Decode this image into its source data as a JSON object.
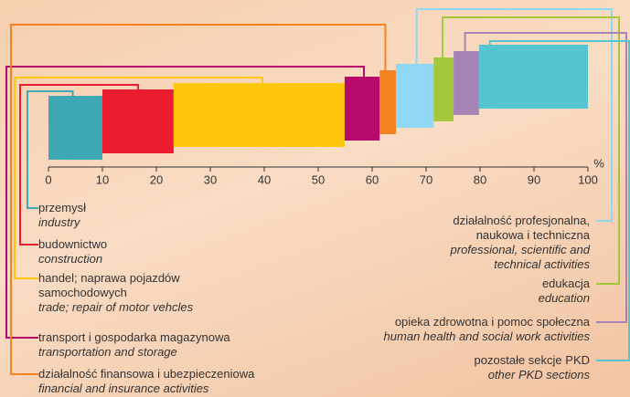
{
  "chart_data": {
    "type": "mekko",
    "categories": [
      "przemysł",
      "budownictwo",
      "handel; naprawa pojazdów samochodowych",
      "transport i gospodarka magazynowa",
      "działalność finansowa i ubezpieczeniowa",
      "działalność profesjonalna, naukowa i techniczna",
      "edukacja",
      "opieka zdrowotna i pomoc społeczna",
      "pozostałe sekcje PKD"
    ],
    "categories_en": [
      "industry",
      "construction",
      "trade; repair of motor vehcles",
      "transportation and storage",
      "financial and insurance activities",
      "professional, scientific and technical activities",
      "education",
      "human health and social work activities",
      "other PKD sections"
    ],
    "values": [
      10,
      13.2,
      31.7,
      6.5,
      3,
      7,
      3.7,
      4.7,
      20.2
    ],
    "colors": [
      "#3fa8b5",
      "#ea1c2d",
      "#fdc80c",
      "#b8096c",
      "#f58220",
      "#8fd8f5",
      "#a3c93a",
      "#a784b6",
      "#55c6d0"
    ],
    "x_unit": "%",
    "xlim": [
      0,
      100
    ],
    "xticks": [
      0,
      10,
      20,
      30,
      40,
      50,
      60,
      70,
      80,
      90,
      100
    ]
  }
}
